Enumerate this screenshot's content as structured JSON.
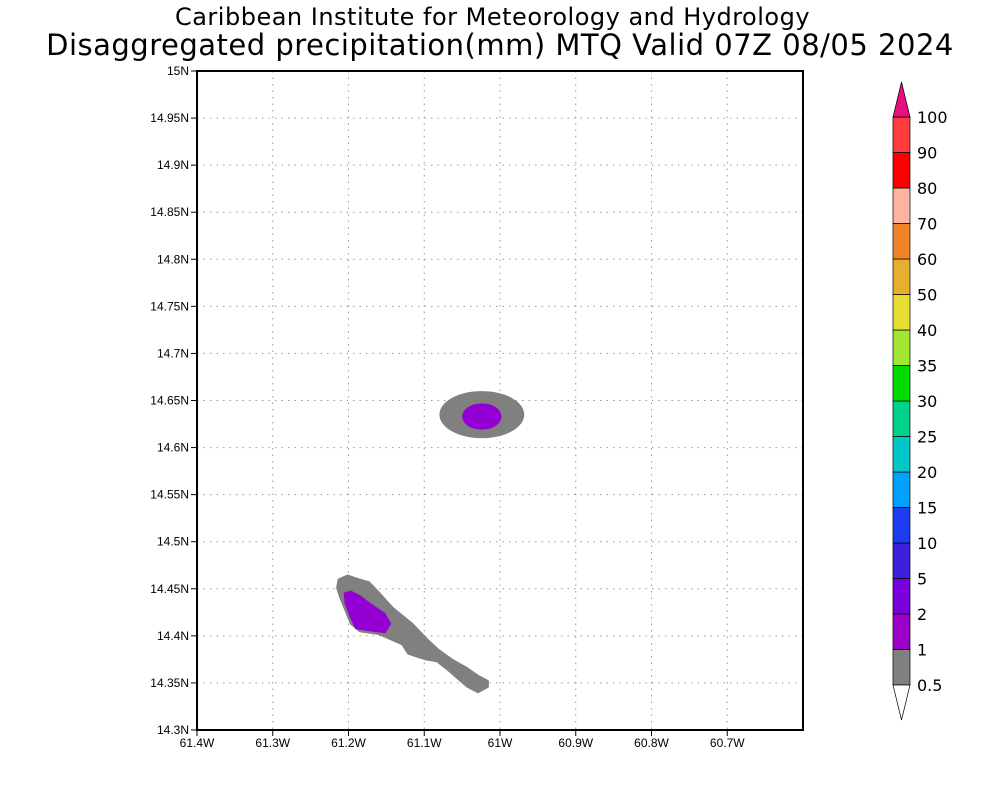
{
  "header": {
    "title": "Caribbean Institute for Meteorology and Hydrology",
    "subtitle": "Disaggregated precipitation(mm) MTQ Valid 07Z 08/05 2024"
  },
  "chart_data": {
    "type": "heatmap",
    "title": "Disaggregated precipitation(mm) MTQ Valid 07Z 08/05 2024",
    "xlim": [
      -61.4,
      -60.6
    ],
    "ylim": [
      14.3,
      15.0
    ],
    "grid": true,
    "x_ticks": [
      {
        "value": -61.4,
        "label": "61.4W"
      },
      {
        "value": -61.3,
        "label": "61.3W"
      },
      {
        "value": -61.2,
        "label": "61.2W"
      },
      {
        "value": -61.1,
        "label": "61.1W"
      },
      {
        "value": -61.0,
        "label": "61W"
      },
      {
        "value": -60.9,
        "label": "60.9W"
      },
      {
        "value": -60.8,
        "label": "60.8W"
      },
      {
        "value": -60.7,
        "label": "60.7W"
      }
    ],
    "y_ticks": [
      {
        "value": 14.3,
        "label": "14.3N"
      },
      {
        "value": 14.35,
        "label": "14.35N"
      },
      {
        "value": 14.4,
        "label": "14.4N"
      },
      {
        "value": 14.45,
        "label": "14.45N"
      },
      {
        "value": 14.5,
        "label": "14.5N"
      },
      {
        "value": 14.55,
        "label": "14.55N"
      },
      {
        "value": 14.6,
        "label": "14.6N"
      },
      {
        "value": 14.65,
        "label": "14.65N"
      },
      {
        "value": 14.7,
        "label": "14.7N"
      },
      {
        "value": 14.75,
        "label": "14.75N"
      },
      {
        "value": 14.8,
        "label": "14.8N"
      },
      {
        "value": 14.85,
        "label": "14.85N"
      },
      {
        "value": 14.9,
        "label": "14.9N"
      },
      {
        "value": 14.95,
        "label": "14.95N"
      },
      {
        "value": 15.0,
        "label": "15N"
      }
    ],
    "regions": [
      {
        "level": "0.5-1",
        "color": "#808080",
        "points": [
          [
            -61.186,
            14.46
          ],
          [
            -61.201,
            14.464
          ],
          [
            -61.213,
            14.46
          ],
          [
            -61.215,
            14.451
          ],
          [
            -61.211,
            14.441
          ],
          [
            -61.197,
            14.413
          ],
          [
            -61.185,
            14.405
          ],
          [
            -61.16,
            14.402
          ],
          [
            -61.129,
            14.391
          ],
          [
            -61.121,
            14.381
          ],
          [
            -61.098,
            14.375
          ],
          [
            -61.083,
            14.373
          ],
          [
            -61.066,
            14.362
          ],
          [
            -61.052,
            14.352
          ],
          [
            -61.043,
            14.346
          ],
          [
            -61.029,
            14.34
          ],
          [
            -61.016,
            14.346
          ],
          [
            -61.016,
            14.352
          ],
          [
            -61.028,
            14.357
          ],
          [
            -61.044,
            14.366
          ],
          [
            -61.062,
            14.374
          ],
          [
            -61.081,
            14.385
          ],
          [
            -61.096,
            14.396
          ],
          [
            -61.116,
            14.413
          ],
          [
            -61.142,
            14.43
          ],
          [
            -61.16,
            14.446
          ],
          [
            -61.173,
            14.457
          ]
        ]
      },
      {
        "level": "1-2",
        "color": "#9400d3",
        "points": [
          [
            -61.197,
            14.447
          ],
          [
            -61.205,
            14.445
          ],
          [
            -61.204,
            14.435
          ],
          [
            -61.197,
            14.42
          ],
          [
            -61.19,
            14.408
          ],
          [
            -61.163,
            14.405
          ],
          [
            -61.152,
            14.404
          ],
          [
            -61.145,
            14.413
          ],
          [
            -61.153,
            14.424
          ],
          [
            -61.17,
            14.433
          ],
          [
            -61.185,
            14.442
          ]
        ]
      },
      {
        "level": "0.5-1",
        "color": "#808080",
        "ellipse": {
          "cx": -61.024,
          "cy": 14.635,
          "rx": 0.056,
          "ry": 0.025
        }
      },
      {
        "level": "1-2",
        "color": "#9400d3",
        "ellipse": {
          "cx": -61.024,
          "cy": 14.633,
          "rx": 0.026,
          "ry": 0.014
        }
      }
    ],
    "colorbar": {
      "labels": [
        "0.5",
        "1",
        "2",
        "5",
        "10",
        "15",
        "20",
        "25",
        "30",
        "35",
        "40",
        "50",
        "60",
        "70",
        "80",
        "90",
        "100"
      ],
      "colors": [
        "#808080",
        "#9c00c8",
        "#7800dc",
        "#3c1edc",
        "#1e3cf0",
        "#00a0ff",
        "#00c8c8",
        "#00d28c",
        "#00dc00",
        "#a0e632",
        "#e6dc32",
        "#e6af2d",
        "#f08228",
        "#fab4a0",
        "#ff0000",
        "#ff3c3c"
      ],
      "lower_arrow_color": "#ffffff",
      "upper_arrow_color": "#e60f7d"
    }
  }
}
